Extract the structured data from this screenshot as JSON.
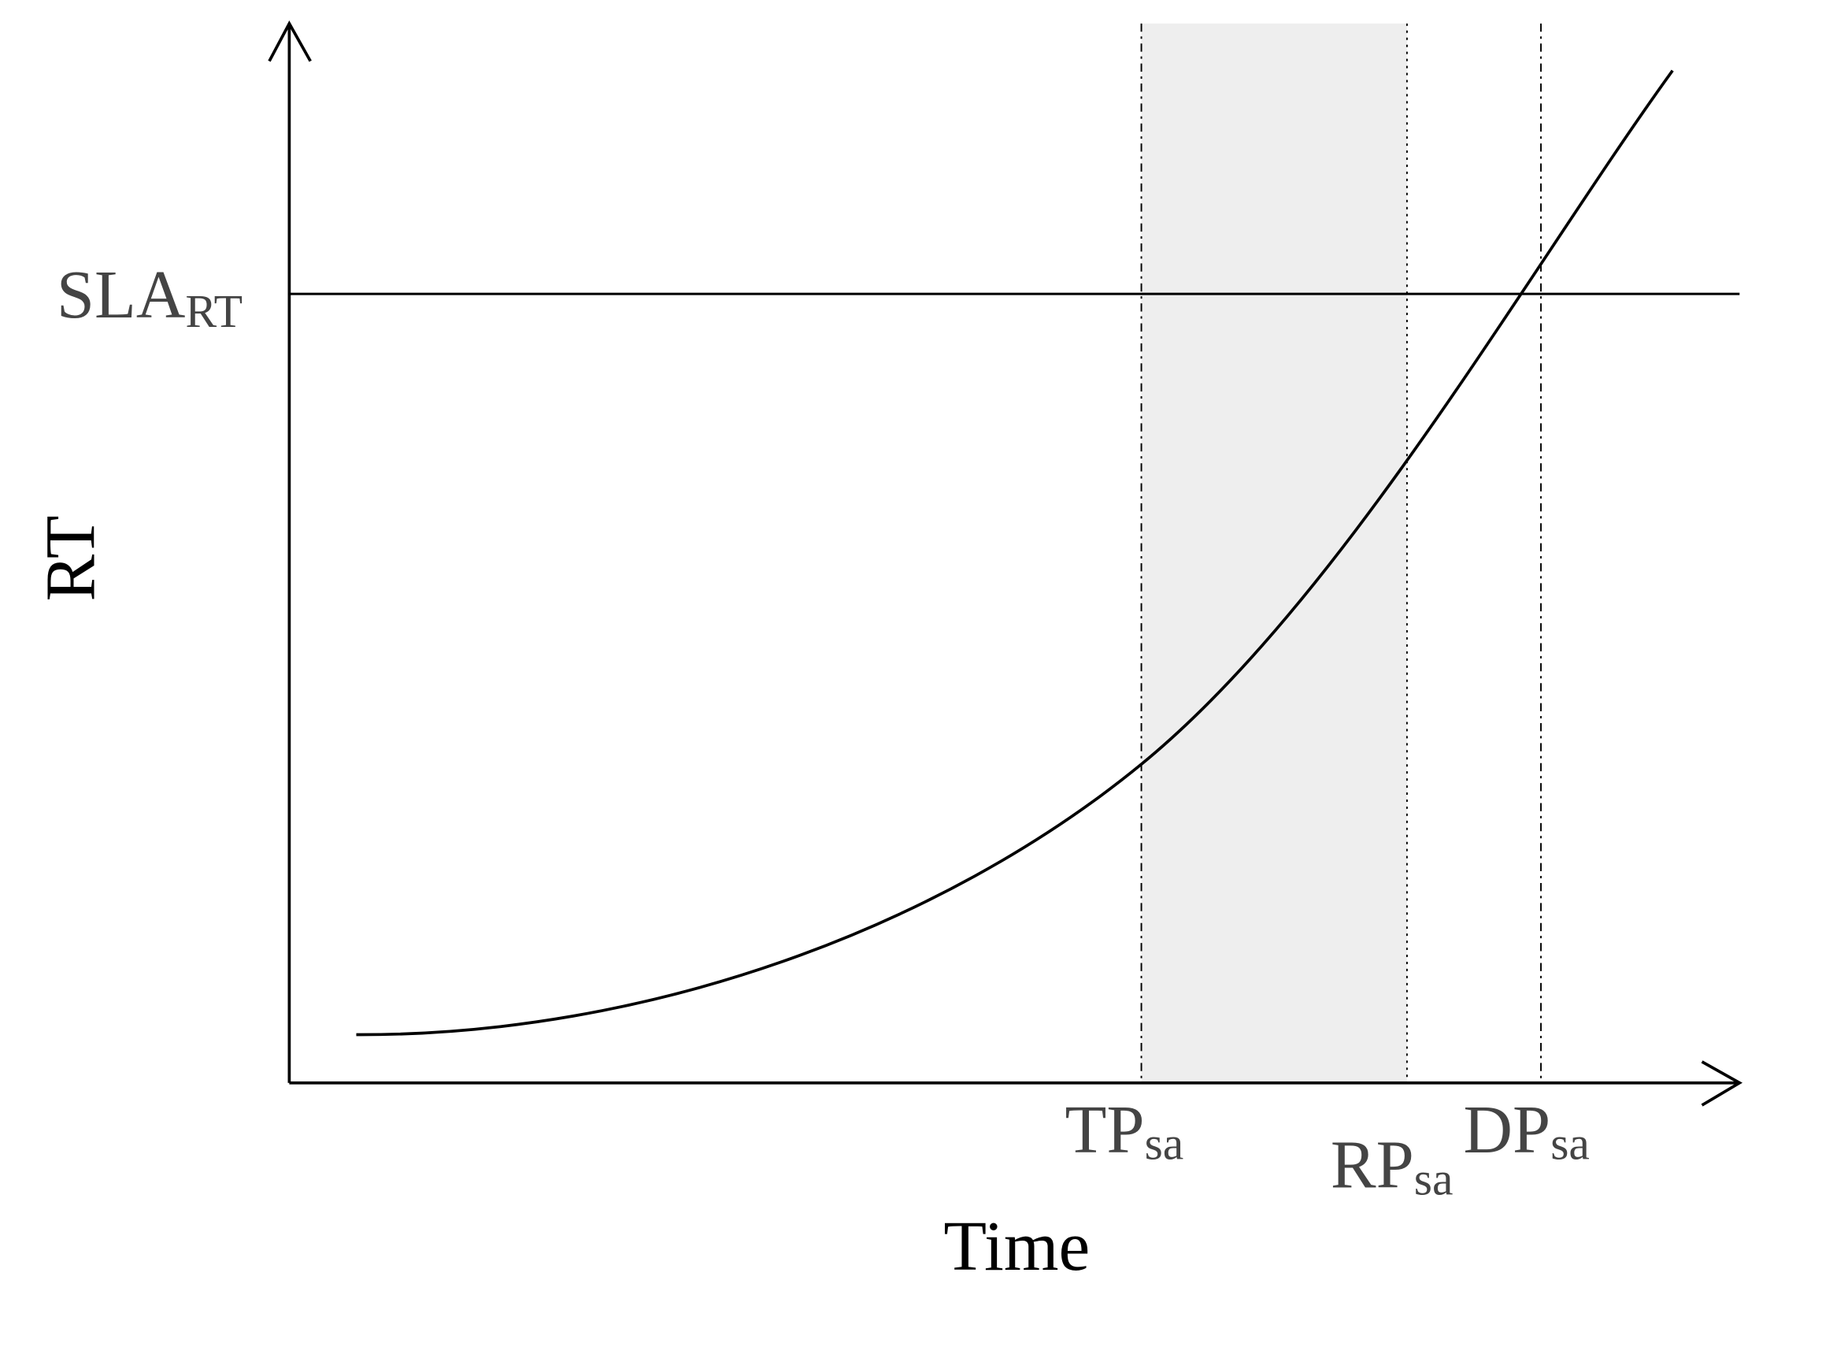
{
  "y_axis": {
    "label": "RT"
  },
  "x_axis": {
    "label": "Time"
  },
  "threshold": {
    "label": "SLA",
    "subscript": "RT"
  },
  "markers": [
    {
      "label": "TP",
      "subscript": "sa"
    },
    {
      "label": "RP",
      "subscript": "sa"
    },
    {
      "label": "DP",
      "subscript": "sa"
    }
  ]
}
